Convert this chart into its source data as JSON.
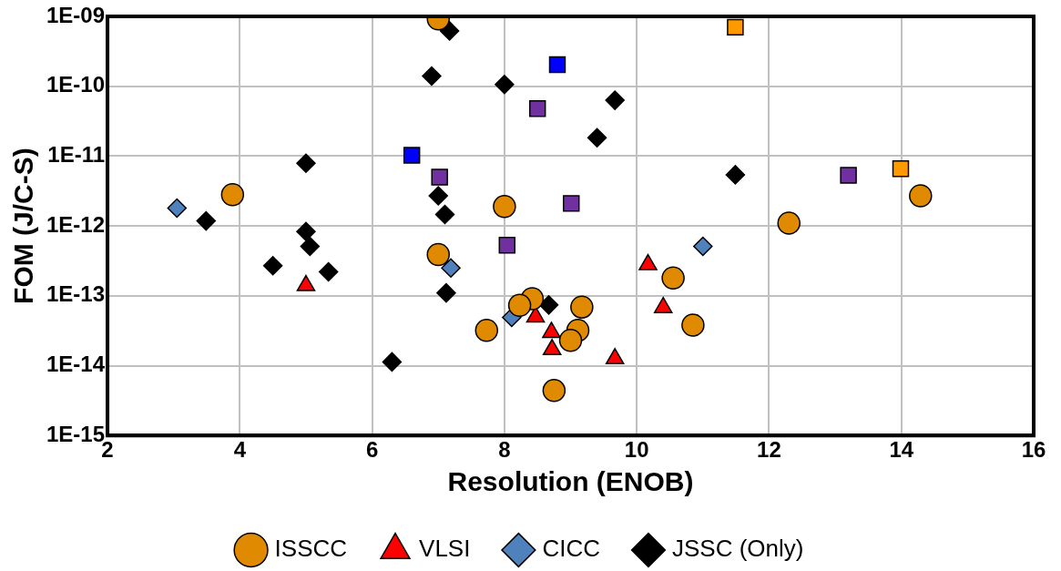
{
  "chart_data": {
    "type": "scatter",
    "xlabel": "Resolution (ENOB)",
    "ylabel": "FOM (J/C-S)",
    "xlim": [
      2,
      16
    ],
    "xticks": [
      2,
      4,
      6,
      8,
      10,
      12,
      14,
      16
    ],
    "ylim": [
      1e-15,
      1e-09
    ],
    "yticks": [
      {
        "value": 1e-15,
        "label": "1E-15"
      },
      {
        "value": 1e-14,
        "label": "1E-14"
      },
      {
        "value": 1e-13,
        "label": "1E-13"
      },
      {
        "value": 1e-12,
        "label": "1E-12"
      },
      {
        "value": 1e-11,
        "label": "1E-11"
      },
      {
        "value": 1e-10,
        "label": "1E-10"
      },
      {
        "value": 1e-09,
        "label": "1E-09"
      }
    ],
    "log": "y",
    "grid": true,
    "legend": "bottom",
    "series": [
      {
        "name": "ISSCC",
        "color": "#df8a00",
        "marker": "circle",
        "x": [
          7.0,
          3.89,
          8.0,
          7.0,
          8.42,
          8.23,
          7.73,
          8.75,
          9.17,
          9.11,
          9.0,
          10.55,
          10.85,
          12.3,
          14.29
        ],
        "values": [
          9.2e-10,
          2.8e-12,
          1.9e-12,
          3.9e-13,
          9.1e-14,
          7.3e-14,
          3.2e-14,
          4.4e-15,
          6.9e-14,
          3.2e-14,
          2.3e-14,
          1.8e-13,
          3.8e-14,
          1.1e-12,
          2.7e-12
        ]
      },
      {
        "name": "VLSI",
        "color": "#ff0000",
        "marker": "triangle",
        "x": [
          5.0,
          8.47,
          8.71,
          8.72,
          10.17,
          10.4,
          9.67
        ],
        "values": [
          1.4e-13,
          5e-14,
          3e-14,
          1.7e-14,
          2.8e-13,
          6.8e-14,
          1.26e-14
        ]
      },
      {
        "name": "CICC",
        "color": "#4f81bd",
        "marker": "diamond",
        "x": [
          3.05,
          7.19,
          8.11,
          11.0
        ],
        "values": [
          1.8e-12,
          2.5e-13,
          4.9e-14,
          5.1e-13
        ]
      },
      {
        "name": "JSSC (Only)",
        "color": "#000000",
        "marker": "diamond",
        "x": [
          7.17,
          6.9,
          8.0,
          5.0,
          7.0,
          7.1,
          3.49,
          5.0,
          5.06,
          4.5,
          5.34,
          7.12,
          8.67,
          6.3,
          9.67,
          9.4,
          11.49
        ],
        "values": [
          6.2e-10,
          1.4e-10,
          1.06e-10,
          7.9e-12,
          2.7e-12,
          1.46e-12,
          1.18e-12,
          8.3e-13,
          5.1e-13,
          2.7e-13,
          2.2e-13,
          1.1e-13,
          7.4e-14,
          1.13e-14,
          6.3e-11,
          1.83e-11,
          5.4e-12
        ]
      },
      {
        "color": "#0000ff",
        "marker": "square",
        "x": [
          6.6,
          8.8
        ],
        "values": [
          1.03e-11,
          2.04e-10
        ]
      },
      {
        "color": "#7030a0",
        "marker": "square",
        "x": [
          8.5,
          7.02,
          8.04,
          9.01,
          13.2
        ],
        "values": [
          4.8e-11,
          5e-12,
          5.3e-13,
          2.1e-12,
          5.3e-12
        ]
      },
      {
        "color": "#ff9900",
        "marker": "square",
        "x": [
          11.49,
          13.99
        ],
        "values": [
          7e-10,
          6.6e-12
        ]
      }
    ]
  }
}
